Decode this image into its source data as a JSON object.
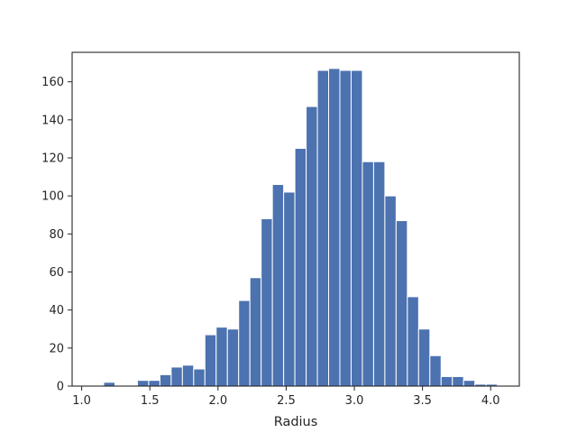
{
  "chart_data": {
    "type": "bar",
    "title": "",
    "xlabel": "Radius",
    "ylabel": "",
    "xlim": [
      0.93,
      4.21
    ],
    "ylim": [
      0,
      175.5
    ],
    "grid": false,
    "bar_color": "#4c72b0",
    "bin_edges_start": 1.079,
    "bin_width": 0.0825,
    "counts": [
      0,
      2,
      0,
      0,
      3,
      3,
      6,
      10,
      11,
      9,
      27,
      31,
      30,
      45,
      57,
      88,
      106,
      102,
      125,
      147,
      166,
      167,
      166,
      166,
      118,
      118,
      100,
      87,
      47,
      30,
      16,
      5,
      5,
      3,
      1,
      1
    ],
    "x_ticks": [
      1.0,
      1.5,
      2.0,
      2.5,
      3.0,
      3.5,
      4.0
    ],
    "x_tick_labels": [
      "1.0",
      "1.5",
      "2.0",
      "2.5",
      "3.0",
      "3.5",
      "4.0"
    ],
    "y_ticks": [
      0,
      20,
      40,
      60,
      80,
      100,
      120,
      140,
      160
    ],
    "y_tick_labels": [
      "0",
      "20",
      "40",
      "60",
      "80",
      "100",
      "120",
      "140",
      "160"
    ]
  }
}
